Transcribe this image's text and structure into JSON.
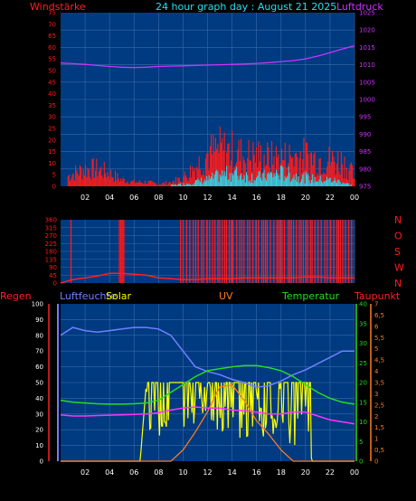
{
  "header": {
    "title": "24 hour graph day : August 21 2025",
    "left_label": "Windstärke",
    "right_label": "Luftdruck"
  },
  "colors": {
    "background": "#000000",
    "plot_bg": "#003a80",
    "grid": "#3a6aa8",
    "wind": "#ff1a1a",
    "gust": "#22e0f0",
    "pressure": "#cc33ff",
    "humidity": "#7080ff",
    "solar": "#ffff00",
    "uv": "#ff7a20",
    "temperature": "#22dd22",
    "dewpoint": "#ff33ff",
    "rain": "#ff2020"
  },
  "chart_data": [
    {
      "type": "line",
      "panel": "wind-pressure",
      "x_ticks": [
        "02",
        "04",
        "06",
        "08",
        "10",
        "12",
        "14",
        "16",
        "18",
        "20",
        "22",
        "00"
      ],
      "left_axis": {
        "label": "Windstärke",
        "ylim": [
          0,
          75
        ],
        "ticks": [
          "0",
          "5",
          "10",
          "15",
          "20",
          "25",
          "30",
          "35",
          "40",
          "45",
          "50",
          "55",
          "60",
          "65",
          "70",
          "75"
        ]
      },
      "right_axis": {
        "label": "Luftdruck",
        "ylim": [
          975,
          1025
        ],
        "ticks": [
          "975",
          "980",
          "985",
          "990",
          "995",
          "1000",
          "1005",
          "1010",
          "1015",
          "1020",
          "1025"
        ]
      },
      "series": [
        {
          "name": "Luftdruck",
          "axis": "right",
          "x": [
            0,
            1,
            2,
            3,
            4,
            5,
            6,
            7,
            8,
            9,
            10,
            11,
            12,
            13,
            14,
            15,
            16,
            17,
            18,
            19,
            20,
            21,
            22,
            23,
            24
          ],
          "values": [
            1010.5,
            1010.3,
            1010.1,
            1009.8,
            1009.5,
            1009.3,
            1009.2,
            1009.3,
            1009.5,
            1009.6,
            1009.7,
            1009.8,
            1009.9,
            1010.0,
            1010.1,
            1010.2,
            1010.4,
            1010.6,
            1010.9,
            1011.2,
            1011.7,
            1012.5,
            1013.5,
            1014.5,
            1015.5
          ]
        },
        {
          "name": "Wind",
          "axis": "left",
          "x": [
            0,
            1,
            2,
            3,
            4,
            5,
            6,
            7,
            8,
            9,
            10,
            11,
            12,
            13,
            14,
            15,
            16,
            17,
            18,
            19,
            20,
            21,
            22,
            23,
            24
          ],
          "values": [
            3,
            6,
            8,
            8,
            6,
            3,
            2,
            2,
            1,
            2,
            4,
            9,
            15,
            17,
            16,
            14,
            14,
            13,
            13,
            14,
            14,
            13,
            12,
            12,
            5
          ]
        },
        {
          "name": "Böen",
          "axis": "left",
          "x": [
            0,
            2,
            4,
            6,
            8,
            10,
            11,
            12,
            13,
            14,
            15,
            16,
            17,
            18,
            19,
            20,
            21,
            22,
            23,
            24
          ],
          "values": [
            0,
            0,
            0,
            0,
            0,
            1,
            2,
            3,
            5,
            6,
            5,
            4,
            5,
            6,
            5,
            4,
            3,
            3,
            2,
            0
          ]
        }
      ]
    },
    {
      "type": "line",
      "panel": "wind-direction",
      "x_ticks": [
        "02",
        "04",
        "06",
        "08",
        "10",
        "12",
        "14",
        "16",
        "18",
        "20",
        "22",
        "00"
      ],
      "left_axis": {
        "ylim": [
          0,
          360
        ],
        "ticks": [
          "0",
          "45",
          "90",
          "135",
          "180",
          "225",
          "270",
          "315",
          "360"
        ]
      },
      "right_labels": [
        "N",
        "W",
        "S",
        "O",
        "N"
      ],
      "series": [
        {
          "name": "Windrichtung",
          "x": [
            0,
            1,
            2,
            3,
            4,
            5,
            6,
            7,
            8,
            9,
            10,
            11,
            12,
            13,
            14,
            15,
            16,
            17,
            18,
            19,
            20,
            21,
            22,
            23,
            24
          ],
          "values": [
            0,
            20,
            30,
            40,
            55,
            55,
            50,
            45,
            30,
            25,
            20,
            20,
            25,
            25,
            25,
            30,
            30,
            30,
            30,
            30,
            35,
            35,
            30,
            30,
            30
          ]
        }
      ]
    },
    {
      "type": "line",
      "panel": "humidity-solar-temperature",
      "x_ticks": [
        "02",
        "04",
        "06",
        "08",
        "10",
        "12",
        "14",
        "16",
        "18",
        "20",
        "22",
        "00"
      ],
      "legend": [
        "Regen",
        "Luftfeuchte",
        "Solar",
        "UV",
        "Temperatur",
        "Taupunkt"
      ],
      "humidity_axis": {
        "ylim": [
          0,
          100
        ],
        "ticks": [
          "0",
          "10",
          "20",
          "30",
          "40",
          "50",
          "60",
          "70",
          "80",
          "90",
          "100"
        ]
      },
      "temperature_axis": {
        "ylim": [
          0,
          40
        ],
        "ticks": [
          "0",
          "5",
          "10",
          "15",
          "20",
          "25",
          "30",
          "35",
          "40"
        ]
      },
      "uv_axis": {
        "ylim": [
          0,
          7
        ],
        "ticks": [
          "0",
          "0,5",
          "1",
          "1,5",
          "2",
          "2,5",
          "3",
          "3,5",
          "4",
          "4,5",
          "5",
          "5,5",
          "6",
          "6,5",
          "7"
        ]
      },
      "series": [
        {
          "name": "Luftfeuchte",
          "axis": "humidity",
          "x": [
            0,
            1,
            2,
            3,
            4,
            5,
            6,
            7,
            8,
            9,
            10,
            11,
            12,
            13,
            14,
            15,
            16,
            17,
            18,
            19,
            20,
            21,
            22,
            23,
            24
          ],
          "values": [
            80,
            85,
            83,
            82,
            83,
            84,
            85,
            85,
            84,
            80,
            70,
            60,
            57,
            55,
            52,
            50,
            47,
            48,
            51,
            55,
            58,
            62,
            66,
            70,
            70
          ]
        },
        {
          "name": "Temperatur",
          "axis": "temperature",
          "x": [
            0,
            1,
            2,
            3,
            4,
            5,
            6,
            7,
            8,
            9,
            10,
            11,
            12,
            13,
            14,
            15,
            16,
            17,
            18,
            19,
            20,
            21,
            22,
            23,
            24
          ],
          "values": [
            15.5,
            15.0,
            14.8,
            14.6,
            14.5,
            14.5,
            14.6,
            14.8,
            15.5,
            17.5,
            19.5,
            21.5,
            23.0,
            23.5,
            24.0,
            24.3,
            24.3,
            23.8,
            23.0,
            21.5,
            19.5,
            17.5,
            16.0,
            15.0,
            14.5
          ]
        },
        {
          "name": "Taupunkt",
          "axis": "temperature",
          "x": [
            0,
            1,
            2,
            3,
            4,
            5,
            6,
            7,
            8,
            9,
            10,
            11,
            12,
            13,
            14,
            15,
            16,
            17,
            18,
            19,
            20,
            21,
            22,
            23,
            24
          ],
          "values": [
            11.8,
            11.5,
            11.5,
            11.6,
            11.7,
            11.8,
            11.9,
            12.0,
            12.3,
            13.0,
            13.5,
            13.8,
            13.5,
            13.5,
            13.0,
            12.8,
            12.5,
            12.0,
            12.0,
            12.5,
            12.5,
            11.5,
            10.5,
            10.0,
            9.5
          ]
        },
        {
          "name": "Solar",
          "axis": "uv",
          "x": [
            0,
            6.5,
            7,
            7.2,
            8,
            8.7,
            9,
            10,
            11,
            12,
            13,
            14,
            15,
            16,
            17,
            18,
            18.5,
            19,
            20,
            20.5,
            24
          ],
          "values": [
            0,
            0,
            3.5,
            2.5,
            2.2,
            2.0,
            1.5,
            3.0,
            3.5,
            3.5,
            2.8,
            3.3,
            2.2,
            3.5,
            2.0,
            3.5,
            2.2,
            1.5,
            3.5,
            0,
            0
          ]
        },
        {
          "name": "UV",
          "axis": "uv",
          "x": [
            0,
            9,
            10,
            11,
            12,
            13,
            14,
            15,
            16,
            17,
            18,
            19,
            24
          ],
          "values": [
            0,
            0,
            0.5,
            1.3,
            2.2,
            3.3,
            3.4,
            2.7,
            1.8,
            1.2,
            0.5,
            0,
            0
          ]
        }
      ]
    }
  ]
}
